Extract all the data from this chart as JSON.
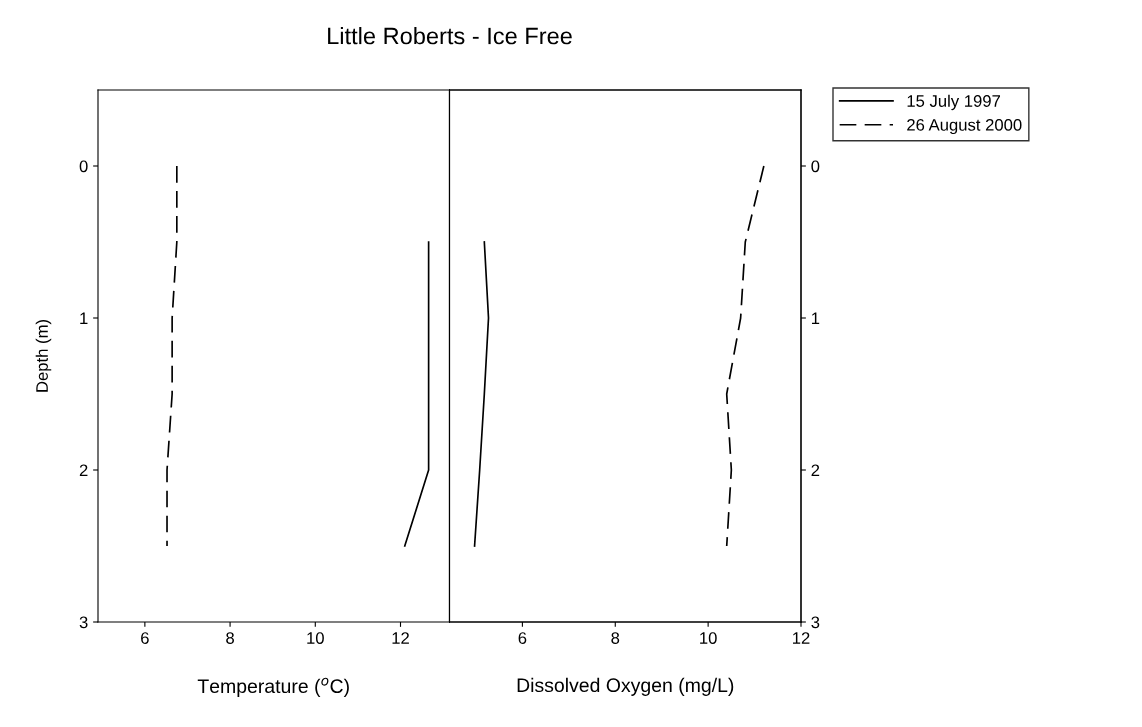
{
  "chart_data": [
    {
      "type": "line",
      "title": "Little Roberts - Ice Free",
      "xlabel": "Temperature ($^{o}$C)",
      "ylabel": "Depth (m)",
      "xlim": [
        4.9,
        13.15
      ],
      "xticks": [
        6,
        8,
        10,
        12
      ],
      "ylim": [
        3,
        -0.5
      ],
      "yticks": [
        0,
        1,
        2,
        3
      ],
      "legend": "top right",
      "grid": false,
      "series": [
        {
          "name": "15 July 1997",
          "color": "#000000",
          "line_style": "solid",
          "x": [
            12.66,
            12.66,
            12.66,
            12.66,
            12.1
          ],
          "values": [
            0.5,
            1,
            1.5,
            2,
            2.5
          ]
        },
        {
          "name": "26 August 2000",
          "color": "#000000",
          "line_style": "dashed",
          "x": [
            6.75,
            6.75,
            6.64,
            6.64,
            6.52,
            6.52
          ],
          "values": [
            0,
            0.5,
            1,
            1.5,
            2,
            2.5
          ]
        }
      ]
    },
    {
      "type": "line",
      "xlabel": "Dissolved Oxygen (mg/L)",
      "xlim": [
        4.43,
        12
      ],
      "xticks": [
        6,
        8,
        10,
        12
      ],
      "y2lim": [
        3,
        -0.5
      ],
      "y2ticks": [
        0,
        1,
        2,
        3
      ],
      "grid": false,
      "series": [
        {
          "color": "#000000",
          "line_style": "solid",
          "axis": "y2",
          "x": [
            5.18,
            5.27,
            5.18,
            5.08,
            4.97
          ],
          "values": [
            0.5,
            1,
            1.5,
            2,
            2.5
          ]
        },
        {
          "color": "#000000",
          "line_style": "dashed",
          "axis": "y2",
          "x": [
            11.2,
            10.8,
            10.7,
            10.4,
            10.5,
            10.4
          ],
          "values": [
            0,
            0.5,
            1,
            1.5,
            2,
            2.5
          ]
        }
      ]
    }
  ]
}
